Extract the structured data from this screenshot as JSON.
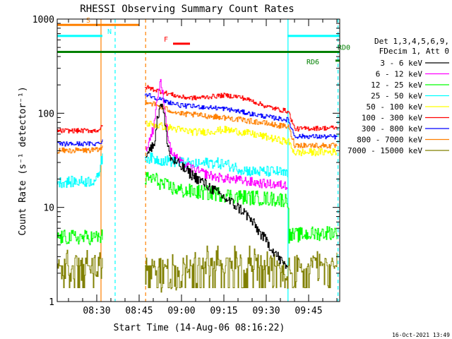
{
  "chart_data": {
    "type": "line",
    "title": "RHESSI Observing Summary Count Rates",
    "xlabel": "Start Time (14-Aug-06 08:16:22)",
    "ylabel": "Count Rate (s⁻¹ detector⁻¹)",
    "ylog": true,
    "ylim": [
      1,
      1000
    ],
    "xlim_minutes": [
      496,
      596
    ],
    "yticks": [
      {
        "v": 1,
        "label": "1"
      },
      {
        "v": 10,
        "label": "10"
      },
      {
        "v": 100,
        "label": "100"
      },
      {
        "v": 1000,
        "label": "1000"
      }
    ],
    "xticks": [
      {
        "t": 510,
        "label": "08:30"
      },
      {
        "t": 525,
        "label": "08:45"
      },
      {
        "t": 540,
        "label": "09:00"
      },
      {
        "t": 555,
        "label": "09:15"
      },
      {
        "t": 570,
        "label": "09:30"
      },
      {
        "t": 585,
        "label": "09:45"
      }
    ],
    "legend_header": [
      "Det 1,3,4,5,6,9,",
      "FDecim 1, Att 0"
    ],
    "legend_position": "right",
    "datagap": [
      [
        512,
        527
      ]
    ],
    "series": [
      {
        "name": "3 - 6 keV",
        "color": "#000000",
        "noise": 0.06,
        "points": [
          [
            527.3,
            38
          ],
          [
            530,
            45
          ],
          [
            531.5,
            90
          ],
          [
            532.5,
            135
          ],
          [
            533.5,
            105
          ],
          [
            534.5,
            60
          ],
          [
            536,
            33
          ],
          [
            538,
            30
          ],
          [
            542,
            24
          ],
          [
            548,
            18
          ],
          [
            553,
            14
          ],
          [
            558,
            11
          ],
          [
            562,
            9
          ],
          [
            565,
            7
          ],
          [
            568,
            5.2
          ],
          [
            571,
            4
          ],
          [
            574,
            3
          ],
          [
            576,
            2.5
          ],
          [
            577.7,
            2.4
          ]
        ]
      },
      {
        "name": "6 - 12 keV",
        "color": "#ff00ff",
        "noise": 0.05,
        "points": [
          [
            527.3,
            40
          ],
          [
            530,
            70
          ],
          [
            531.5,
            160
          ],
          [
            532.5,
            210
          ],
          [
            533.5,
            150
          ],
          [
            534.5,
            80
          ],
          [
            536,
            40
          ],
          [
            540,
            29
          ],
          [
            546,
            24
          ],
          [
            552,
            21
          ],
          [
            560,
            19.5
          ],
          [
            568,
            18
          ],
          [
            577.7,
            17
          ]
        ]
      },
      {
        "name": "12 - 25 keV",
        "color": "#00ff00",
        "noise": 0.08,
        "points": [
          [
            496,
            4.8
          ],
          [
            511.5,
            4.8
          ],
          [
            527.3,
            20
          ],
          [
            530,
            20.5
          ],
          [
            534,
            17
          ],
          [
            540,
            15
          ],
          [
            546,
            14.5
          ],
          [
            552,
            14
          ],
          [
            560,
            13
          ],
          [
            568,
            12.5
          ],
          [
            577.7,
            12
          ],
          [
            578,
            5
          ],
          [
            595,
            5.5
          ]
        ]
      },
      {
        "name": "25 - 50 keV",
        "color": "#00ffff",
        "noise": 0.06,
        "points": [
          [
            496,
            18.5
          ],
          [
            508,
            19
          ],
          [
            510.5,
            20.5
          ],
          [
            511.5,
            33
          ],
          [
            527.3,
            34
          ],
          [
            532,
            32
          ],
          [
            540,
            30
          ],
          [
            545,
            28.5
          ],
          [
            550,
            30
          ],
          [
            555,
            29
          ],
          [
            560,
            26
          ],
          [
            565,
            24
          ],
          [
            570,
            24
          ],
          [
            574,
            24
          ],
          [
            577.7,
            22
          ]
        ]
      },
      {
        "name": "50 - 100 keV",
        "color": "#ffff00",
        "noise": 0.04,
        "points": [
          [
            527.3,
            78
          ],
          [
            534,
            72
          ],
          [
            540,
            66
          ],
          [
            545,
            63
          ],
          [
            550,
            64
          ],
          [
            555,
            67
          ],
          [
            560,
            64
          ],
          [
            565,
            60
          ],
          [
            570,
            56
          ],
          [
            574,
            52
          ],
          [
            577.7,
            50
          ],
          [
            580,
            38
          ],
          [
            585,
            38.5
          ],
          [
            595,
            39
          ]
        ]
      },
      {
        "name": "100 - 300 keV",
        "color": "#ff0000",
        "noise": 0.025,
        "points": [
          [
            496,
            65
          ],
          [
            510,
            65.5
          ],
          [
            511.5,
            70
          ],
          [
            527.3,
            190
          ],
          [
            534,
            165
          ],
          [
            540,
            148
          ],
          [
            545,
            145
          ],
          [
            550,
            150
          ],
          [
            555,
            155
          ],
          [
            560,
            150
          ],
          [
            565,
            135
          ],
          [
            570,
            118
          ],
          [
            574,
            110
          ],
          [
            577.7,
            105
          ],
          [
            580,
            68
          ],
          [
            585,
            69
          ],
          [
            595,
            70
          ]
        ]
      },
      {
        "name": "300 - 800 keV",
        "color": "#0000ff",
        "noise": 0.025,
        "points": [
          [
            496,
            47
          ],
          [
            510,
            47.5
          ],
          [
            511.5,
            50
          ],
          [
            527.3,
            160
          ],
          [
            534,
            135
          ],
          [
            540,
            120
          ],
          [
            545,
            118
          ],
          [
            550,
            115
          ],
          [
            555,
            112
          ],
          [
            560,
            105
          ],
          [
            565,
            98
          ],
          [
            570,
            92
          ],
          [
            574,
            88
          ],
          [
            577.7,
            85
          ],
          [
            580,
            57
          ],
          [
            595,
            56
          ]
        ]
      },
      {
        "name": "800 - 7000 keV",
        "color": "#ff8000",
        "noise": 0.03,
        "points": [
          [
            496,
            40
          ],
          [
            510,
            40.5
          ],
          [
            511.5,
            42
          ],
          [
            527.3,
            135
          ],
          [
            534,
            112
          ],
          [
            540,
            98
          ],
          [
            545,
            96
          ],
          [
            550,
            93
          ],
          [
            555,
            90
          ],
          [
            560,
            86
          ],
          [
            565,
            82
          ],
          [
            570,
            78
          ],
          [
            574,
            74
          ],
          [
            577.7,
            72
          ],
          [
            580,
            46
          ],
          [
            595,
            45
          ]
        ]
      },
      {
        "name": "7000 - 15000 keV",
        "color": "#808000",
        "noise": 0.35,
        "points": [
          [
            496,
            2.4
          ],
          [
            511.5,
            2.4
          ],
          [
            527.3,
            2.0
          ],
          [
            540,
            2.2
          ],
          [
            550,
            3.0
          ],
          [
            558,
            3.5
          ],
          [
            565,
            3.0
          ],
          [
            570,
            2.4
          ],
          [
            577.7,
            2.0
          ],
          [
            585,
            2.3
          ],
          [
            595,
            2.4
          ]
        ]
      }
    ],
    "flags": [
      {
        "label": "S",
        "color": "#ff8000",
        "y": 868,
        "t_start": 496,
        "t_end": 525
      },
      {
        "label": "N",
        "color": "#00ffff",
        "y": 662,
        "t_start": 496,
        "t_end": 512
      },
      {
        "label": "N",
        "color": "#00ffff",
        "y": 662,
        "t_start": 577.5,
        "t_end": 596
      },
      {
        "label": "F",
        "color": "#ff0000",
        "y": 548,
        "t_start": 537,
        "t_end": 543
      },
      {
        "label": "RD0",
        "color": "#008000",
        "y": 448,
        "t_start": 496,
        "t_end": 596
      },
      {
        "label": "RD6",
        "color": "#008000",
        "y": 362,
        "t_start": 594.5,
        "t_end": 596
      }
    ],
    "vlines": [
      {
        "t": 511.5,
        "color": "#ff8000",
        "dash": false
      },
      {
        "t": 516.5,
        "color": "#00ffff",
        "dash": true
      },
      {
        "t": 527.3,
        "color": "#ff8000",
        "dash": true
      },
      {
        "t": 577.7,
        "color": "#00ffff",
        "dash": false
      },
      {
        "t": 595.4,
        "color": "#00ffff",
        "dash": true
      }
    ]
  },
  "footer": {
    "timestamp": "16-Oct-2021 13:49"
  }
}
